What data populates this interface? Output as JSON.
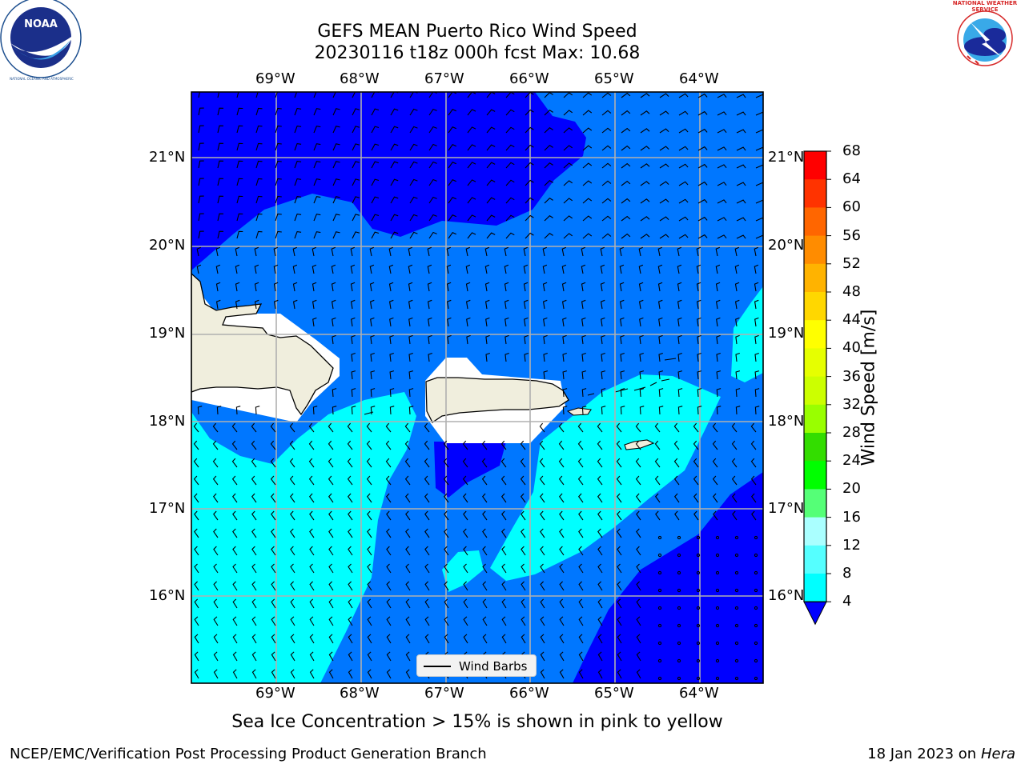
{
  "title": {
    "line1": "GEFS MEAN Puerto Rico Wind Speed",
    "line2": "20230116 t18z 000h fcst   Max: 10.68"
  },
  "logos": {
    "noaa_text": "NOAA",
    "noaa_ring_text": "NATIONAL OCEANIC AND ATMOSPHERIC ADMINISTRATION · U.S. DEPARTMENT OF COMMERCE",
    "nws_ring_text": "NATIONAL WEATHER SERVICE"
  },
  "axes": {
    "lon_labels": [
      "69°W",
      "68°W",
      "67°W",
      "66°W",
      "65°W",
      "64°W"
    ],
    "lat_labels": [
      "21°N",
      "20°N",
      "19°N",
      "18°N",
      "17°N",
      "16°N"
    ]
  },
  "colorbar": {
    "title": "Wind Speed [m/s]",
    "ticks": [
      "68",
      "64",
      "60",
      "56",
      "52",
      "48",
      "44",
      "40",
      "36",
      "32",
      "28",
      "24",
      "20",
      "16",
      "12",
      "8",
      "4"
    ],
    "colors": [
      "#ff0000",
      "#ff3300",
      "#ff6600",
      "#ff8c00",
      "#ffb300",
      "#ffd700",
      "#ffff00",
      "#e6ff00",
      "#ccff00",
      "#99ff00",
      "#33dd00",
      "#00ff00",
      "#55ff77",
      "#aaffff",
      "#55ffff",
      "#00ffff",
      "#0077ff"
    ],
    "under_color": "#0000ff"
  },
  "legend": {
    "label": "Wind Barbs"
  },
  "caption": "Sea Ice Concentration > 15% is shown in pink to yellow",
  "footer": {
    "left": "NCEP/EMC/Verification Post Processing Product Generation Branch",
    "date": "18 Jan 2023 on ",
    "machine": "Hera"
  }
}
